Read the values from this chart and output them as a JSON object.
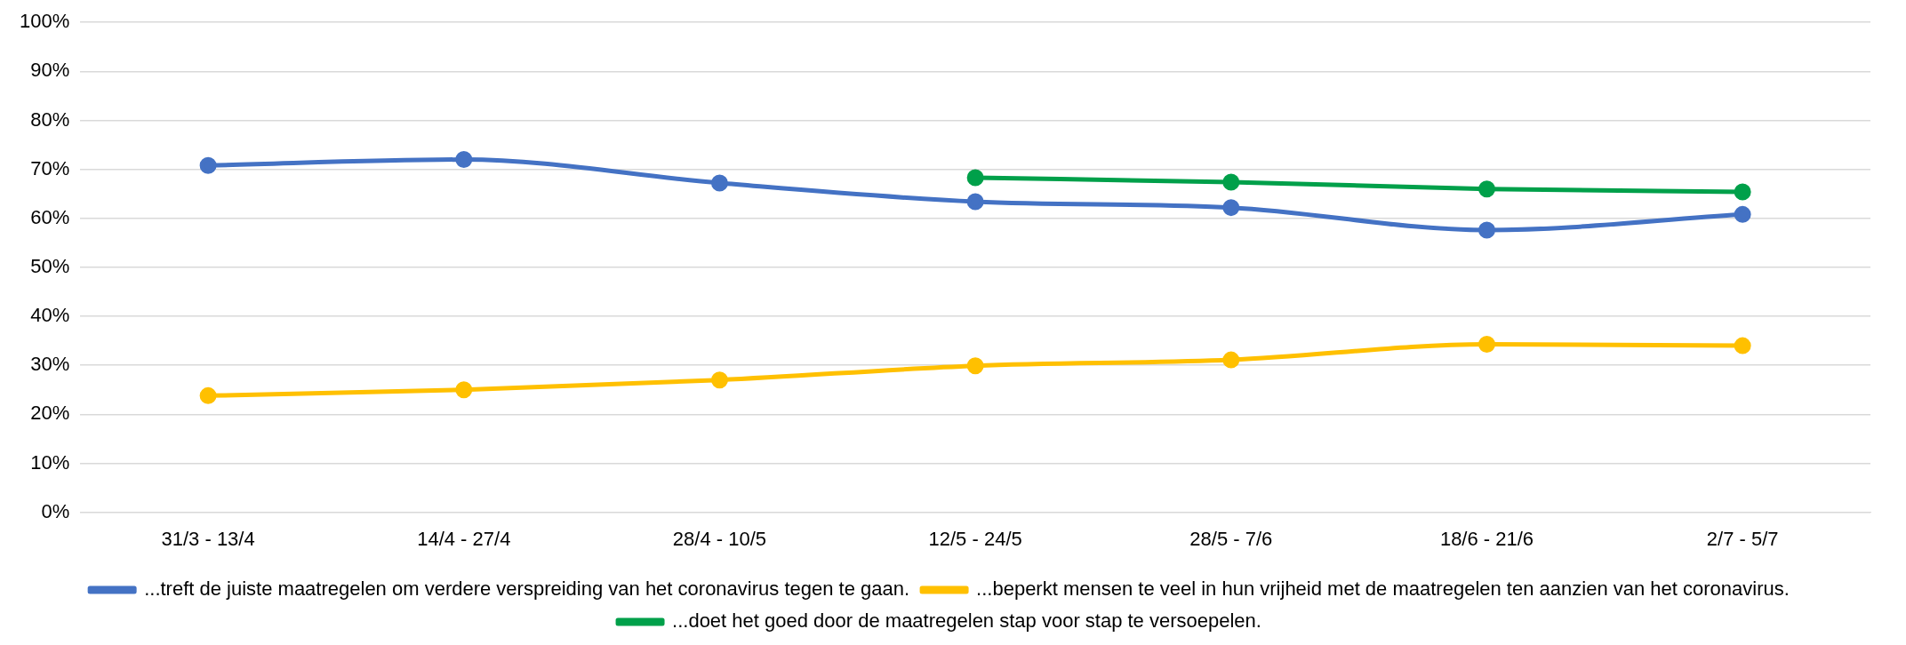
{
  "chart_data": {
    "type": "line",
    "categories": [
      "31/3 - 13/4",
      "14/4 - 27/4",
      "28/4 - 10/5",
      "12/5 - 24/5",
      "28/5 - 7/6",
      "18/6 - 21/6",
      "2/7 - 5/7"
    ],
    "series": [
      {
        "name": "...treft de juiste maatregelen om verdere verspreiding van het coronavirus tegen te gaan.",
        "color": "#4472c4",
        "values": [
          70.8,
          72,
          67.2,
          63.4,
          62.2,
          57.6,
          60.8
        ]
      },
      {
        "name": "...beperkt mensen te veel in hun vrijheid met de maatregelen ten aanzien van het coronavirus.",
        "color": "#ffc000",
        "values": [
          23.8,
          25,
          27,
          29.9,
          31.1,
          34.3,
          34
        ]
      },
      {
        "name": "...doet het goed door de maatregelen stap voor stap te versoepelen.",
        "color": "#00a04a",
        "values": [
          null,
          null,
          null,
          68.3,
          67.4,
          66,
          65.4
        ]
      }
    ],
    "ylim": [
      0,
      100
    ],
    "yticks": [
      {
        "value": 0,
        "label": "0%"
      },
      {
        "value": 10,
        "label": "10%"
      },
      {
        "value": 20,
        "label": "20%"
      },
      {
        "value": 30,
        "label": "30%"
      },
      {
        "value": 40,
        "label": "40%"
      },
      {
        "value": 50,
        "label": "50%"
      },
      {
        "value": 60,
        "label": "60%"
      },
      {
        "value": 70,
        "label": "70%"
      },
      {
        "value": 80,
        "label": "80%"
      },
      {
        "value": 90,
        "label": "90%"
      },
      {
        "value": 100,
        "label": "100%"
      }
    ],
    "grid": "y",
    "legend": "bottom",
    "marker": "circle",
    "line_style": "solid"
  }
}
